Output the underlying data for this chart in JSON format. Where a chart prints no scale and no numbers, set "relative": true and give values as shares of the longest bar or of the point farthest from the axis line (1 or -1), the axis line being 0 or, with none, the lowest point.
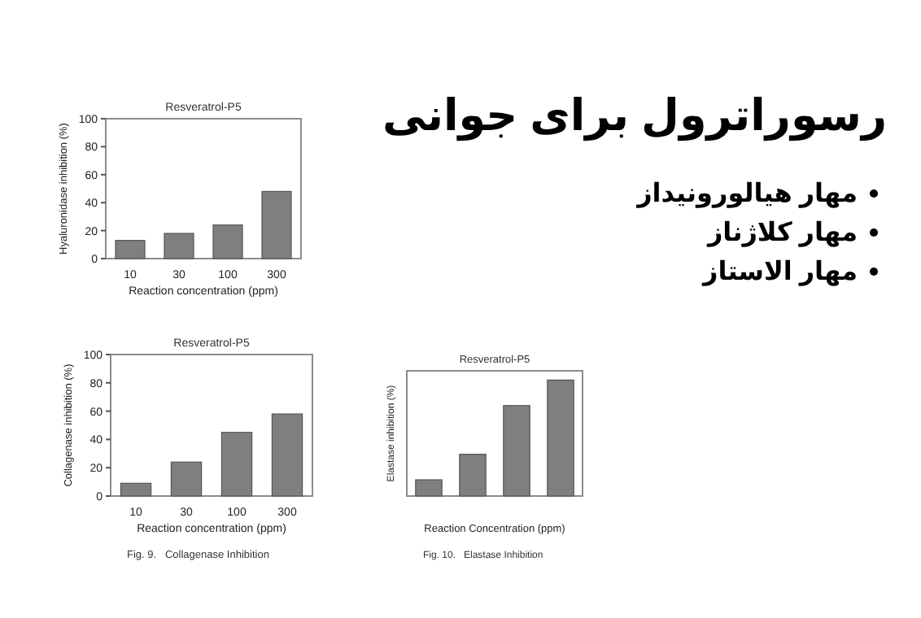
{
  "chart_data": [
    {
      "type": "bar",
      "title": "Resveratrol-P5",
      "xlabel": "Reaction concentration (ppm)",
      "ylabel": "Hyaluronidase inhibition (%)",
      "categories": [
        "10",
        "30",
        "100",
        "300"
      ],
      "values": [
        13,
        18,
        24,
        48
      ],
      "color": "#7f7f7f",
      "ylim": [
        0,
        100
      ],
      "yticks": [
        0,
        20,
        40,
        60,
        80,
        100
      ]
    },
    {
      "type": "bar",
      "title": "Resveratrol-P5",
      "xlabel": "Reaction concentration (ppm)",
      "ylabel": "Collagenase inhibition (%)",
      "categories": [
        "10",
        "30",
        "100",
        "300"
      ],
      "values": [
        9,
        24,
        45,
        58
      ],
      "color": "#7f7f7f",
      "ylim": [
        0,
        100
      ],
      "yticks": [
        0,
        20,
        40,
        60,
        80,
        100
      ],
      "annotations": [
        "Fig. 9.   Collagenase Inhibition"
      ]
    },
    {
      "type": "bar",
      "title": "Resveratrol-P5",
      "xlabel": "Reaction Concentration (ppm)",
      "ylabel": "Elastase inhibition (%)",
      "categories": [
        null,
        null,
        null,
        null
      ],
      "values": [
        0.14,
        0.36,
        0.78,
        1
      ],
      "color": "#7f7f7f",
      "relative": true,
      "annotations": [
        "Fig. 10.   Elastase Inhibition"
      ]
    },
    {
      "type": "other",
      "title": "رسوراترول برای جوانی",
      "annotations": [
        "مهار هیالورونیداز",
        "مهار کلاژناز",
        "مهار الاستاز"
      ]
    }
  ]
}
